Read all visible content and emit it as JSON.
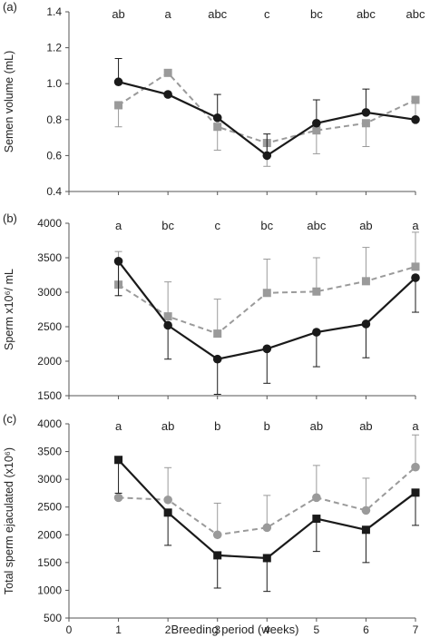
{
  "panel_ylabel_x": 14,
  "x_axis": {
    "label": "Breeding period (weeks)",
    "ticks": [
      0,
      1,
      2,
      3,
      4,
      5,
      6,
      7
    ],
    "range": [
      0,
      7
    ]
  },
  "colors": {
    "black_series": "#1a1a1a",
    "gray_series": "#9a9a9a",
    "axis": "#555555"
  },
  "chart_data": [
    {
      "type": "line",
      "panel_label": "(a)",
      "ylabel": "Semen volume (mL)",
      "ylim": [
        0.4,
        1.4
      ],
      "yticks": [
        0.4,
        0.6,
        0.8,
        1.0,
        1.2,
        1.4
      ],
      "ytick_labels": [
        "0.4",
        "0.6",
        "0.8",
        "1.0",
        "1.2",
        "1.4"
      ],
      "x": [
        1,
        2,
        3,
        4,
        5,
        6,
        7
      ],
      "letters": [
        "ab",
        "a",
        "abc",
        "c",
        "bc",
        "abc",
        "abc"
      ],
      "series": [
        {
          "style": "solid-circle-black",
          "values": [
            1.01,
            0.94,
            0.81,
            0.6,
            0.78,
            0.84,
            0.8
          ],
          "err_up": [
            0.13,
            0.0,
            0.13,
            0.12,
            0.13,
            0.13,
            0.0
          ],
          "err_down": [
            0.0,
            0.0,
            0.0,
            0.0,
            0.0,
            0.0,
            0.0
          ]
        },
        {
          "style": "dashed-square-gray",
          "values": [
            0.88,
            1.06,
            0.76,
            0.67,
            0.74,
            0.78,
            0.91
          ],
          "err_up": [
            0.0,
            0.0,
            0.0,
            0.0,
            0.0,
            0.0,
            0.0
          ],
          "err_down": [
            0.12,
            0.0,
            0.13,
            0.13,
            0.13,
            0.13,
            0.11
          ]
        }
      ]
    },
    {
      "type": "line",
      "panel_label": "(b)",
      "ylabel": "Sperm x10⁶/ mL",
      "ylim": [
        1500,
        4000
      ],
      "yticks": [
        1500,
        2000,
        2500,
        3000,
        3500,
        4000
      ],
      "ytick_labels": [
        "1500",
        "2000",
        "2500",
        "3000",
        "3500",
        "4000"
      ],
      "x": [
        1,
        2,
        3,
        4,
        5,
        6,
        7
      ],
      "letters": [
        "a",
        "bc",
        "c",
        "bc",
        "abc",
        "ab",
        "a"
      ],
      "series": [
        {
          "style": "solid-circle-black",
          "values": [
            3450,
            2520,
            2030,
            2180,
            2420,
            2540,
            3210
          ],
          "err_up": [
            0,
            0,
            0,
            0,
            0,
            0,
            0
          ],
          "err_down": [
            500,
            490,
            510,
            500,
            500,
            490,
            500
          ]
        },
        {
          "style": "dashed-square-gray",
          "values": [
            3110,
            2650,
            2400,
            2990,
            3010,
            3160,
            3370
          ],
          "err_up": [
            480,
            500,
            500,
            490,
            490,
            490,
            500
          ],
          "err_down": [
            0,
            0,
            0,
            0,
            0,
            0,
            0
          ]
        }
      ]
    },
    {
      "type": "line",
      "panel_label": "(c)",
      "ylabel": "Total sperm ejaculated (x10⁶)",
      "ylim": [
        500,
        4000
      ],
      "yticks": [
        500,
        1000,
        1500,
        2000,
        2500,
        3000,
        3500,
        4000
      ],
      "ytick_labels": [
        "500",
        "1000",
        "1500",
        "2000",
        "2500",
        "3000",
        "3500",
        "4000"
      ],
      "x": [
        1,
        2,
        3,
        4,
        5,
        6,
        7
      ],
      "letters": [
        "a",
        "ab",
        "b",
        "b",
        "ab",
        "ab",
        "a"
      ],
      "series": [
        {
          "style": "solid-square-black",
          "values": [
            3350,
            2400,
            1630,
            1580,
            2290,
            2090,
            2760
          ],
          "err_up": [
            0,
            0,
            0,
            0,
            0,
            0,
            0
          ],
          "err_down": [
            600,
            590,
            590,
            600,
            590,
            590,
            590
          ]
        },
        {
          "style": "dashed-circle-gray",
          "values": [
            2670,
            2630,
            2000,
            2130,
            2670,
            2440,
            3220
          ],
          "err_up": [
            0,
            580,
            570,
            580,
            580,
            580,
            580
          ],
          "err_down": [
            0,
            0,
            0,
            0,
            0,
            0,
            0
          ]
        }
      ]
    }
  ]
}
